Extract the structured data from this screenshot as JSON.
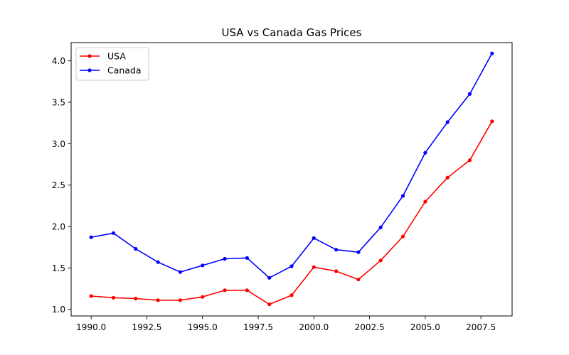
{
  "chart_data": {
    "type": "line",
    "title": "USA vs Canada Gas Prices",
    "xlabel": "",
    "ylabel": "",
    "xlim": [
      1989.1,
      2008.9
    ],
    "ylim": [
      0.92,
      4.22
    ],
    "xticks": [
      1990.0,
      1992.5,
      1995.0,
      1997.5,
      2000.0,
      2002.5,
      2005.0,
      2007.5
    ],
    "xtick_labels": [
      "1990.0",
      "1992.5",
      "1995.0",
      "1997.5",
      "2000.0",
      "2002.5",
      "2005.0",
      "2007.5"
    ],
    "yticks": [
      1.0,
      1.5,
      2.0,
      2.5,
      3.0,
      3.5,
      4.0
    ],
    "ytick_labels": [
      "1.0",
      "1.5",
      "2.0",
      "2.5",
      "3.0",
      "3.5",
      "4.0"
    ],
    "grid": false,
    "legend_position": "top-left",
    "x": [
      1990,
      1991,
      1992,
      1993,
      1994,
      1995,
      1996,
      1997,
      1998,
      1999,
      2000,
      2001,
      2002,
      2003,
      2004,
      2005,
      2006,
      2007,
      2008
    ],
    "series": [
      {
        "name": "USA",
        "color": "#ff0000",
        "marker": "dot",
        "values": [
          1.16,
          1.14,
          1.13,
          1.11,
          1.11,
          1.15,
          1.23,
          1.23,
          1.06,
          1.17,
          1.51,
          1.46,
          1.36,
          1.59,
          1.88,
          2.3,
          2.59,
          2.8,
          3.27
        ]
      },
      {
        "name": "Canada",
        "color": "#0000ff",
        "marker": "dot",
        "values": [
          1.87,
          1.92,
          1.73,
          1.57,
          1.45,
          1.53,
          1.61,
          1.62,
          1.38,
          1.52,
          1.86,
          1.72,
          1.69,
          1.99,
          2.37,
          2.89,
          3.26,
          3.6,
          4.09
        ]
      }
    ]
  }
}
